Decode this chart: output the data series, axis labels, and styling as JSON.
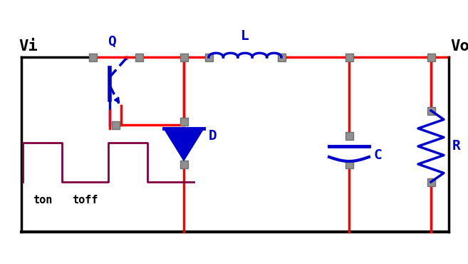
{
  "bg_color": "#ffffff",
  "wire_color": "#000000",
  "red_wire": "#ff0000",
  "blue_color": "#0000cc",
  "purple_color": "#800040",
  "node_color": "#909090",
  "figsize": [
    6.57,
    3.7
  ],
  "dpi": 100,
  "Vi_label": "Vi",
  "Vo_label": "Vo",
  "Q_label": "Q",
  "D_label": "D",
  "L_label": "L",
  "C_label": "C",
  "R_label": "R",
  "ton_label": "ton",
  "toff_label": "toff"
}
